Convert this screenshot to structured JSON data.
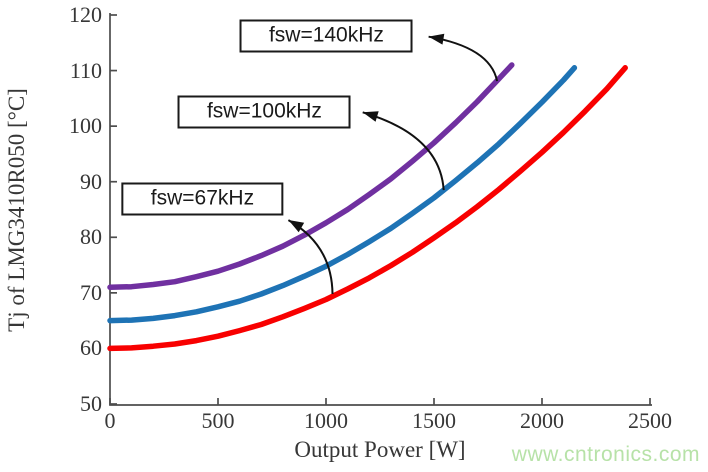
{
  "chart_data": {
    "type": "line",
    "title": "",
    "xlabel": "Output Power [W]",
    "ylabel": "Tj of LMG3410R050 [°C]",
    "xlim": [
      0,
      2500
    ],
    "ylim": [
      50,
      120
    ],
    "xticks": [
      0,
      500,
      1000,
      1500,
      2000,
      2500
    ],
    "yticks": [
      50,
      60,
      70,
      80,
      90,
      100,
      110,
      120
    ],
    "grid": false,
    "legend_position": "annotation-boxes-inside-plot",
    "axis_color": "#4d4d4d",
    "text_color": "#373737",
    "series": [
      {
        "name": "fsw=140kHz",
        "color": "#7030A0",
        "points": [
          [
            0,
            71
          ],
          [
            100,
            71.1
          ],
          [
            200,
            71.5
          ],
          [
            300,
            72.0
          ],
          [
            400,
            72.9
          ],
          [
            500,
            73.9
          ],
          [
            600,
            75.2
          ],
          [
            700,
            76.7
          ],
          [
            800,
            78.4
          ],
          [
            900,
            80.4
          ],
          [
            1000,
            82.6
          ],
          [
            1100,
            85.0
          ],
          [
            1200,
            87.7
          ],
          [
            1300,
            90.5
          ],
          [
            1400,
            93.7
          ],
          [
            1500,
            97.0
          ],
          [
            1600,
            100.6
          ],
          [
            1700,
            104.4
          ],
          [
            1800,
            108.5
          ],
          [
            1860,
            111.0
          ]
        ]
      },
      {
        "name": "fsw=100kHz",
        "color": "#1E73B5",
        "points": [
          [
            0,
            65
          ],
          [
            100,
            65.1
          ],
          [
            200,
            65.4
          ],
          [
            300,
            65.9
          ],
          [
            400,
            66.6
          ],
          [
            500,
            67.5
          ],
          [
            600,
            68.5
          ],
          [
            700,
            69.8
          ],
          [
            800,
            71.3
          ],
          [
            900,
            73.0
          ],
          [
            1000,
            74.8
          ],
          [
            1100,
            76.9
          ],
          [
            1200,
            79.2
          ],
          [
            1300,
            81.6
          ],
          [
            1400,
            84.3
          ],
          [
            1500,
            87.1
          ],
          [
            1600,
            90.2
          ],
          [
            1700,
            93.4
          ],
          [
            1800,
            96.8
          ],
          [
            1900,
            100.5
          ],
          [
            2000,
            104.3
          ],
          [
            2100,
            108.3
          ],
          [
            2150,
            110.5
          ]
        ]
      },
      {
        "name": "fsw=67kHz",
        "color": "#F80000",
        "points": [
          [
            0,
            60
          ],
          [
            100,
            60.1
          ],
          [
            200,
            60.4
          ],
          [
            300,
            60.8
          ],
          [
            400,
            61.4
          ],
          [
            500,
            62.2
          ],
          [
            600,
            63.2
          ],
          [
            700,
            64.3
          ],
          [
            800,
            65.7
          ],
          [
            900,
            67.2
          ],
          [
            1000,
            68.8
          ],
          [
            1100,
            70.7
          ],
          [
            1200,
            72.7
          ],
          [
            1300,
            74.9
          ],
          [
            1400,
            77.3
          ],
          [
            1500,
            79.9
          ],
          [
            1600,
            82.6
          ],
          [
            1700,
            85.5
          ],
          [
            1800,
            88.6
          ],
          [
            1900,
            91.9
          ],
          [
            2000,
            95.3
          ],
          [
            2100,
            98.9
          ],
          [
            2200,
            102.7
          ],
          [
            2300,
            106.7
          ],
          [
            2385,
            110.5
          ]
        ]
      }
    ],
    "annotations": [
      {
        "label": "fsw=140kHz",
        "box_center": [
          1002,
          116.3
        ],
        "arrow": {
          "tail": [
            1792,
            108.1
          ],
          "ctrl": [
            1760,
            114.2
          ],
          "head": [
            1475,
            116.1
          ]
        }
      },
      {
        "label": "fsw=100kHz",
        "box_center": [
          715,
          102.5
        ],
        "arrow": {
          "tail": [
            1545,
            88.5
          ],
          "ctrl": [
            1528,
            98.4
          ],
          "head": [
            1170,
            102.5
          ]
        }
      },
      {
        "label": "fsw=67kHz",
        "box_center": [
          428,
          86.8
        ],
        "arrow": {
          "tail": [
            1030,
            69.8
          ],
          "ctrl": [
            1028,
            78.6
          ],
          "head": [
            826,
            83.1
          ]
        }
      }
    ]
  },
  "watermark": {
    "text": "www.cntronics.com",
    "color": "#b7e2a8"
  }
}
